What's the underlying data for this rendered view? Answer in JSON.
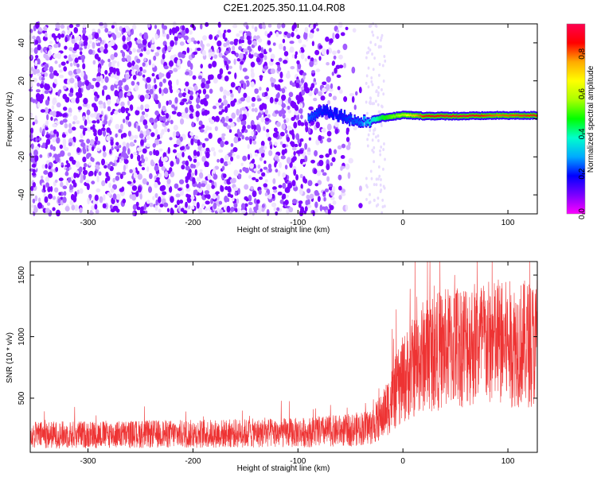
{
  "title": "C2E1.2025.350.11.04.R08",
  "chart_data": [
    {
      "type": "heatmap",
      "title": "C2E1.2025.350.11.04.R08",
      "xlabel": "Height of straight line (km)",
      "ylabel": "Frequency (Hz)",
      "xlim": [
        -355,
        128
      ],
      "ylim": [
        -50,
        50
      ],
      "x_ticks": [
        -300,
        -200,
        -100,
        0,
        100
      ],
      "y_ticks": [
        -40,
        -20,
        0,
        20,
        40
      ],
      "colorbar": {
        "label": "Normalized spectral amplitude",
        "range": [
          0,
          0.95
        ],
        "ticks": [
          0.0,
          0.2,
          0.4,
          0.6,
          0.8
        ],
        "colormap": [
          "#ff00ff",
          "#7a00ff",
          "#0000ff",
          "#00aaff",
          "#00ffcc",
          "#00ff00",
          "#aaff00",
          "#ffff00",
          "#ffaa00",
          "#ff0000",
          "#ff0050"
        ]
      },
      "noise_region_x": [
        -355,
        -35
      ],
      "noise_amplitude": 0.05,
      "signal_line": [
        {
          "x": -90,
          "freq": 0.0,
          "amp": 0.25
        },
        {
          "x": -75,
          "freq": 5.0,
          "amp": 0.2
        },
        {
          "x": -60,
          "freq": 2.0,
          "amp": 0.2
        },
        {
          "x": -40,
          "freq": -2.0,
          "amp": 0.25
        },
        {
          "x": -20,
          "freq": 0.5,
          "amp": 0.45
        },
        {
          "x": 0,
          "freq": 2.0,
          "amp": 0.6
        },
        {
          "x": 20,
          "freq": 1.5,
          "amp": 0.85
        },
        {
          "x": 60,
          "freq": 1.5,
          "amp": 0.9
        },
        {
          "x": 90,
          "freq": 1.8,
          "amp": 0.8
        },
        {
          "x": 128,
          "freq": 1.8,
          "amp": 0.85
        }
      ]
    },
    {
      "type": "line",
      "xlabel": "Height of straight line (km)",
      "ylabel": "SNR (10 * v/v)",
      "xlim": [
        -355,
        128
      ],
      "ylim": [
        60,
        1610
      ],
      "x_ticks": [
        -300,
        -200,
        -100,
        0,
        100
      ],
      "y_ticks": [
        500,
        1000,
        1500
      ],
      "color": "#ee3333",
      "series": [
        {
          "name": "SNR",
          "x": [
            -355,
            -300,
            -200,
            -100,
            -50,
            -30,
            -20,
            0,
            20,
            60,
            100,
            128
          ],
          "values": [
            200,
            205,
            210,
            220,
            240,
            270,
            350,
            650,
            850,
            950,
            940,
            945
          ]
        }
      ]
    }
  ]
}
